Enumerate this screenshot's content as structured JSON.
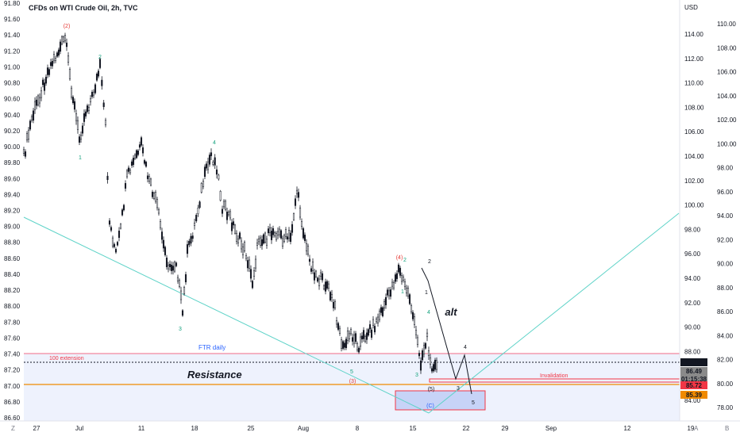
{
  "header": {
    "title": "CFDs on WTI Crude Oil, 2h, TVC",
    "currency": "USD"
  },
  "corners": {
    "left": "Z",
    "auto": "A",
    "b": "B"
  },
  "colors": {
    "candle": "#131722",
    "zone_fill": "#e3e9fb",
    "zone_line": "#f06b86",
    "teal": "#5fd3c8",
    "orange": "#f08a00",
    "wave_green": "#16a37f",
    "wave_red": "#e53935",
    "price_black": "#131722",
    "price_gray": "#8a8a8a",
    "price_red": "#f23645",
    "price_orange": "#f08a00"
  },
  "chart_data": {
    "type": "candlestick",
    "left_axis_ticks": [
      "91.80",
      "91.60",
      "91.40",
      "91.20",
      "91.00",
      "90.80",
      "90.60",
      "90.40",
      "90.20",
      "90.00",
      "89.80",
      "89.60",
      "89.40",
      "89.20",
      "89.00",
      "88.80",
      "88.60",
      "88.40",
      "88.20",
      "88.00",
      "87.80",
      "87.60",
      "87.40",
      "87.20",
      "87.00",
      "86.80",
      "86.60"
    ],
    "right_axis_ticks": [
      "110.00",
      "108.00",
      "106.00",
      "104.00",
      "102.00",
      "100.00",
      "98.00",
      "96.00",
      "94.00",
      "92.00",
      "90.00",
      "88.00",
      "86.00",
      "84.00",
      "82.00",
      "80.00",
      "78.00"
    ],
    "right_axis_inner_ticks": [
      "114.00",
      "112.00",
      "110.00",
      "108.00",
      "106.00",
      "104.00",
      "102.00",
      "100.00",
      "98.00",
      "96.00",
      "94.00",
      "92.00",
      "90.00",
      "88.00",
      "86.00",
      "84.00"
    ],
    "x_ticks": [
      "27",
      "Jul",
      "11",
      "18",
      "25",
      "Aug",
      "8",
      "15",
      "22",
      "29",
      "Sep",
      "12",
      "19"
    ],
    "price_labels": [
      {
        "value": "87.14",
        "style": "black"
      },
      {
        "value": "86.49",
        "style": "gray"
      },
      {
        "value": "01:15:38",
        "style": "gray"
      },
      {
        "value": "85.72",
        "style": "red"
      },
      {
        "value": "85.39",
        "style": "orange"
      }
    ],
    "zone_labels": [
      "100 extension",
      "FTR daily",
      "Resistance",
      "Invalidation"
    ],
    "wave_labels": [
      {
        "text": "(2)",
        "color": "red"
      },
      {
        "text": "1",
        "color": "green"
      },
      {
        "text": "2",
        "color": "green"
      },
      {
        "text": "3",
        "color": "green"
      },
      {
        "text": "4",
        "color": "green"
      },
      {
        "text": "(4)",
        "color": "red"
      },
      {
        "text": "2",
        "color": "green"
      },
      {
        "text": "1",
        "color": "green"
      },
      {
        "text": "4",
        "color": "green"
      },
      {
        "text": "5",
        "color": "green"
      },
      {
        "text": "3",
        "color": "green"
      },
      {
        "text": "(3)",
        "color": "red"
      },
      {
        "text": "(5)",
        "color": "black"
      },
      {
        "text": "(C)",
        "color": "blue"
      },
      {
        "text": "2",
        "color": "black"
      },
      {
        "text": "1",
        "color": "black"
      },
      {
        "text": "alt",
        "color": "black"
      },
      {
        "text": "4",
        "color": "black"
      },
      {
        "text": "3",
        "color": "black"
      },
      {
        "text": "5",
        "color": "black"
      }
    ]
  }
}
